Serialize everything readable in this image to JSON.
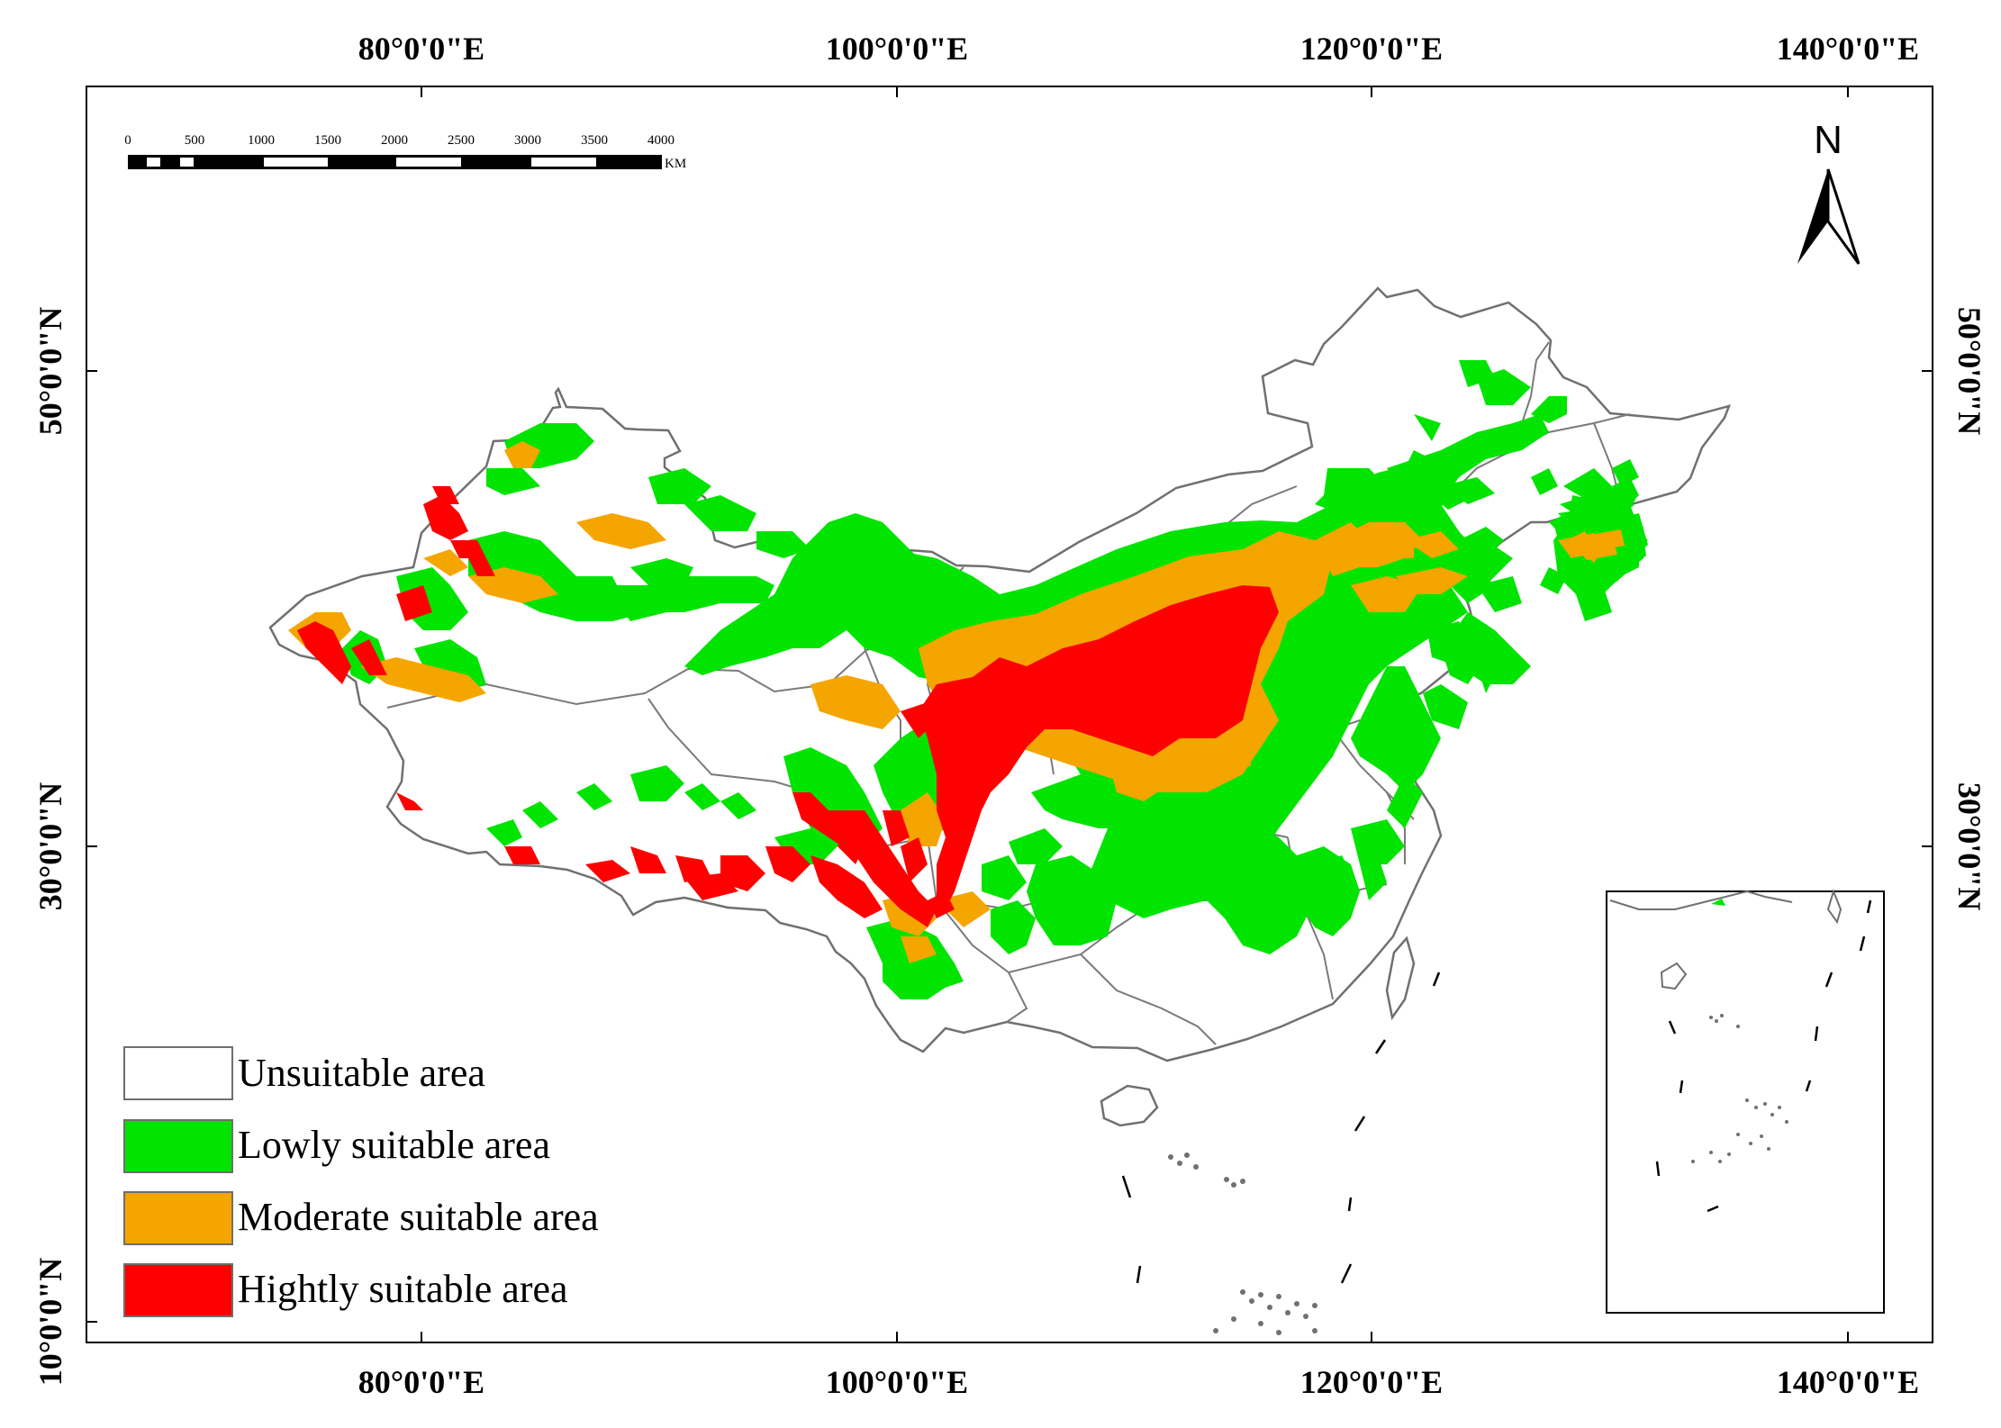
{
  "map": {
    "top_lon_labels": [
      "80°0'0\"E",
      "100°0'0\"E",
      "120°0'0\"E",
      "140°0'0\"E"
    ],
    "bottom_lon_labels": [
      "80°0'0\"E",
      "100°0'0\"E",
      "120°0'0\"E",
      "140°0'0\"E"
    ],
    "left_lat_labels": [
      "50°0'0\"N",
      "30°0'0\"N",
      "10°0'0\"N"
    ],
    "right_lat_labels": [
      "50°0'0\"N",
      "30°0'0\"N"
    ],
    "scale_bar": {
      "ticks": [
        "0",
        "500",
        "1000",
        "1500",
        "2000",
        "2500",
        "3000",
        "3500",
        "4000"
      ],
      "unit": "KM"
    },
    "north_arrow": {
      "label": "N",
      "icon": "north-arrow-icon"
    }
  },
  "legend": {
    "items": [
      {
        "label": "Unsuitable area",
        "color": "#ffffff"
      },
      {
        "label": "Lowly suitable area",
        "color": "#00e400"
      },
      {
        "label": "Moderate suitable area",
        "color": "#f5a500"
      },
      {
        "label": "Hightly suitable area",
        "color": "#ff0000"
      }
    ]
  },
  "colors": {
    "border": "#6e6e6e",
    "frame": "#000000",
    "low": "#00e400",
    "moderate": "#f5a500",
    "high": "#ff0000"
  }
}
